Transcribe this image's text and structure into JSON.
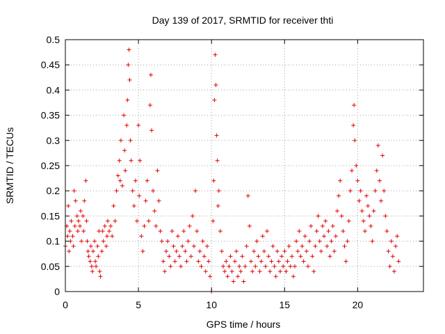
{
  "chart_data": {
    "type": "scatter",
    "title": "Day 139 of 2017, SRMTID for receiver thti",
    "xlabel": "GPS time / hours",
    "ylabel": "SRMTID / TECUs",
    "xlim": [
      0,
      24.5
    ],
    "ylim": [
      0,
      0.5
    ],
    "xticks": [
      0,
      5,
      10,
      15,
      20
    ],
    "xtick_labels": [
      "0",
      "5",
      "10",
      "15",
      "20"
    ],
    "yticks": [
      0,
      0.05,
      0.1,
      0.15,
      0.2,
      0.25,
      0.3,
      0.35,
      0.4,
      0.45,
      0.5
    ],
    "ytick_labels": [
      "0",
      "0.05",
      "0.1",
      "0.15",
      "0.2",
      "0.25",
      "0.3",
      "0.35",
      "0.4",
      "0.45",
      "0.5"
    ],
    "grid": true,
    "marker": "+",
    "color": "#e00000",
    "series": [
      {
        "name": "SRMTID",
        "points": [
          [
            0.0,
            0.09
          ],
          [
            0.1,
            0.13
          ],
          [
            0.15,
            0.11
          ],
          [
            0.2,
            0.17
          ],
          [
            0.25,
            0.08
          ],
          [
            0.3,
            0.12
          ],
          [
            0.35,
            0.1
          ],
          [
            0.4,
            0.14
          ],
          [
            0.5,
            0.11
          ],
          [
            0.55,
            0.09
          ],
          [
            0.6,
            0.2
          ],
          [
            0.65,
            0.13
          ],
          [
            0.7,
            0.18
          ],
          [
            0.8,
            0.15
          ],
          [
            0.85,
            0.12
          ],
          [
            0.9,
            0.14
          ],
          [
            1.0,
            0.13
          ],
          [
            1.05,
            0.16
          ],
          [
            1.1,
            0.1
          ],
          [
            1.2,
            0.15
          ],
          [
            1.25,
            0.12
          ],
          [
            1.3,
            0.18
          ],
          [
            1.4,
            0.22
          ],
          [
            1.45,
            0.14
          ],
          [
            1.5,
            0.1
          ],
          [
            1.55,
            0.08
          ],
          [
            1.6,
            0.07
          ],
          [
            1.7,
            0.06
          ],
          [
            1.75,
            0.09
          ],
          [
            1.8,
            0.05
          ],
          [
            1.85,
            0.04
          ],
          [
            1.9,
            0.08
          ],
          [
            2.0,
            0.1
          ],
          [
            2.05,
            0.06
          ],
          [
            2.1,
            0.05
          ],
          [
            2.2,
            0.09
          ],
          [
            2.25,
            0.07
          ],
          [
            2.3,
            0.12
          ],
          [
            2.35,
            0.04
          ],
          [
            2.4,
            0.03
          ],
          [
            2.5,
            0.08
          ],
          [
            2.55,
            0.12
          ],
          [
            2.6,
            0.1
          ],
          [
            2.7,
            0.13
          ],
          [
            2.8,
            0.09
          ],
          [
            2.85,
            0.11
          ],
          [
            2.9,
            0.14
          ],
          [
            3.0,
            0.12
          ],
          [
            3.1,
            0.13
          ],
          [
            3.2,
            0.11
          ],
          [
            3.3,
            0.17
          ],
          [
            3.4,
            0.14
          ],
          [
            3.5,
            0.2
          ],
          [
            3.6,
            0.23
          ],
          [
            3.7,
            0.26
          ],
          [
            3.75,
            0.22
          ],
          [
            3.8,
            0.3
          ],
          [
            3.9,
            0.21
          ],
          [
            4.0,
            0.35
          ],
          [
            4.05,
            0.28
          ],
          [
            4.1,
            0.24
          ],
          [
            4.2,
            0.33
          ],
          [
            4.25,
            0.38
          ],
          [
            4.3,
            0.45
          ],
          [
            4.35,
            0.48
          ],
          [
            4.4,
            0.42
          ],
          [
            4.45,
            0.3
          ],
          [
            4.5,
            0.26
          ],
          [
            4.6,
            0.2
          ],
          [
            4.7,
            0.17
          ],
          [
            4.8,
            0.22
          ],
          [
            4.9,
            0.14
          ],
          [
            5.0,
            0.33
          ],
          [
            5.05,
            0.19
          ],
          [
            5.1,
            0.26
          ],
          [
            5.2,
            0.11
          ],
          [
            5.3,
            0.08
          ],
          [
            5.4,
            0.13
          ],
          [
            5.5,
            0.18
          ],
          [
            5.6,
            0.22
          ],
          [
            5.7,
            0.14
          ],
          [
            5.8,
            0.37
          ],
          [
            5.85,
            0.43
          ],
          [
            5.9,
            0.32
          ],
          [
            6.0,
            0.2
          ],
          [
            6.1,
            0.16
          ],
          [
            6.2,
            0.13
          ],
          [
            6.3,
            0.24
          ],
          [
            6.4,
            0.18
          ],
          [
            6.5,
            0.12
          ],
          [
            6.6,
            0.1
          ],
          [
            6.7,
            0.06
          ],
          [
            6.8,
            0.04
          ],
          [
            6.9,
            0.08
          ],
          [
            7.0,
            0.1
          ],
          [
            7.1,
            0.07
          ],
          [
            7.2,
            0.05
          ],
          [
            7.3,
            0.12
          ],
          [
            7.4,
            0.09
          ],
          [
            7.5,
            0.06
          ],
          [
            7.6,
            0.08
          ],
          [
            7.7,
            0.11
          ],
          [
            7.8,
            0.07
          ],
          [
            7.9,
            0.05
          ],
          [
            8.0,
            0.09
          ],
          [
            8.1,
            0.12
          ],
          [
            8.2,
            0.08
          ],
          [
            8.3,
            0.06
          ],
          [
            8.4,
            0.1
          ],
          [
            8.5,
            0.13
          ],
          [
            8.6,
            0.07
          ],
          [
            8.7,
            0.15
          ],
          [
            8.8,
            0.09
          ],
          [
            8.9,
            0.2
          ],
          [
            9.0,
            0.12
          ],
          [
            9.1,
            0.06
          ],
          [
            9.2,
            0.08
          ],
          [
            9.3,
            0.05
          ],
          [
            9.4,
            0.1
          ],
          [
            9.5,
            0.07
          ],
          [
            9.6,
            0.04
          ],
          [
            9.7,
            0.09
          ],
          [
            9.8,
            0.06
          ],
          [
            9.9,
            0.03
          ],
          [
            10.0,
            0.0
          ],
          [
            10.1,
            0.14
          ],
          [
            10.15,
            0.22
          ],
          [
            10.2,
            0.38
          ],
          [
            10.25,
            0.47
          ],
          [
            10.3,
            0.41
          ],
          [
            10.35,
            0.31
          ],
          [
            10.4,
            0.26
          ],
          [
            10.45,
            0.17
          ],
          [
            10.5,
            0.2
          ],
          [
            10.6,
            0.12
          ],
          [
            10.7,
            0.08
          ],
          [
            10.8,
            0.05
          ],
          [
            10.9,
            0.04
          ],
          [
            11.0,
            0.06
          ],
          [
            11.1,
            0.03
          ],
          [
            11.2,
            0.05
          ],
          [
            11.3,
            0.07
          ],
          [
            11.4,
            0.04
          ],
          [
            11.5,
            0.02
          ],
          [
            11.6,
            0.06
          ],
          [
            11.7,
            0.08
          ],
          [
            11.8,
            0.03
          ],
          [
            11.9,
            0.05
          ],
          [
            12.0,
            0.04
          ],
          [
            12.1,
            0.07
          ],
          [
            12.2,
            0.02
          ],
          [
            12.3,
            0.05
          ],
          [
            12.4,
            0.09
          ],
          [
            12.5,
            0.19
          ],
          [
            12.6,
            0.13
          ],
          [
            12.7,
            0.06
          ],
          [
            12.8,
            0.04
          ],
          [
            12.9,
            0.08
          ],
          [
            13.0,
            0.05
          ],
          [
            13.1,
            0.1
          ],
          [
            13.2,
            0.07
          ],
          [
            13.3,
            0.04
          ],
          [
            13.4,
            0.06
          ],
          [
            13.5,
            0.11
          ],
          [
            13.6,
            0.08
          ],
          [
            13.7,
            0.05
          ],
          [
            13.8,
            0.12
          ],
          [
            13.9,
            0.07
          ],
          [
            14.0,
            0.04
          ],
          [
            14.1,
            0.06
          ],
          [
            14.2,
            0.09
          ],
          [
            14.3,
            0.05
          ],
          [
            14.4,
            0.03
          ],
          [
            14.5,
            0.08
          ],
          [
            14.6,
            0.06
          ],
          [
            14.7,
            0.04
          ],
          [
            14.8,
            0.07
          ],
          [
            14.9,
            0.05
          ],
          [
            15.0,
            0.08
          ],
          [
            15.1,
            0.04
          ],
          [
            15.2,
            0.06
          ],
          [
            15.3,
            0.09
          ],
          [
            15.4,
            0.05
          ],
          [
            15.5,
            0.07
          ],
          [
            15.6,
            0.03
          ],
          [
            15.7,
            0.05
          ],
          [
            15.8,
            0.1
          ],
          [
            15.9,
            0.08
          ],
          [
            16.0,
            0.12
          ],
          [
            16.1,
            0.07
          ],
          [
            16.2,
            0.09
          ],
          [
            16.3,
            0.06
          ],
          [
            16.4,
            0.11
          ],
          [
            16.5,
            0.08
          ],
          [
            16.6,
            0.05
          ],
          [
            16.7,
            0.1
          ],
          [
            16.8,
            0.13
          ],
          [
            16.9,
            0.07
          ],
          [
            17.0,
            0.04
          ],
          [
            17.1,
            0.09
          ],
          [
            17.2,
            0.12
          ],
          [
            17.3,
            0.15
          ],
          [
            17.4,
            0.1
          ],
          [
            17.5,
            0.08
          ],
          [
            17.6,
            0.13
          ],
          [
            17.7,
            0.11
          ],
          [
            17.8,
            0.14
          ],
          [
            17.9,
            0.09
          ],
          [
            18.0,
            0.12
          ],
          [
            18.1,
            0.07
          ],
          [
            18.2,
            0.1
          ],
          [
            18.3,
            0.13
          ],
          [
            18.4,
            0.08
          ],
          [
            18.5,
            0.11
          ],
          [
            18.6,
            0.16
          ],
          [
            18.7,
            0.19
          ],
          [
            18.8,
            0.22
          ],
          [
            18.9,
            0.15
          ],
          [
            19.0,
            0.12
          ],
          [
            19.1,
            0.09
          ],
          [
            19.2,
            0.06
          ],
          [
            19.3,
            0.1
          ],
          [
            19.4,
            0.14
          ],
          [
            19.5,
            0.2
          ],
          [
            19.6,
            0.24
          ],
          [
            19.7,
            0.33
          ],
          [
            19.75,
            0.37
          ],
          [
            19.8,
            0.3
          ],
          [
            19.9,
            0.25
          ],
          [
            20.0,
            0.22
          ],
          [
            20.1,
            0.18
          ],
          [
            20.2,
            0.2
          ],
          [
            20.3,
            0.16
          ],
          [
            20.4,
            0.14
          ],
          [
            20.5,
            0.12
          ],
          [
            20.6,
            0.19
          ],
          [
            20.7,
            0.17
          ],
          [
            20.8,
            0.15
          ],
          [
            20.9,
            0.13
          ],
          [
            21.0,
            0.1
          ],
          [
            21.1,
            0.16
          ],
          [
            21.2,
            0.2
          ],
          [
            21.3,
            0.24
          ],
          [
            21.4,
            0.29
          ],
          [
            21.5,
            0.22
          ],
          [
            21.6,
            0.18
          ],
          [
            21.7,
            0.27
          ],
          [
            21.8,
            0.2
          ],
          [
            21.9,
            0.15
          ],
          [
            22.0,
            0.12
          ],
          [
            22.1,
            0.08
          ],
          [
            22.2,
            0.05
          ],
          [
            22.3,
            0.1
          ],
          [
            22.4,
            0.07
          ],
          [
            22.5,
            0.04
          ],
          [
            22.6,
            0.09
          ],
          [
            22.7,
            0.11
          ],
          [
            22.8,
            0.06
          ]
        ]
      }
    ]
  }
}
